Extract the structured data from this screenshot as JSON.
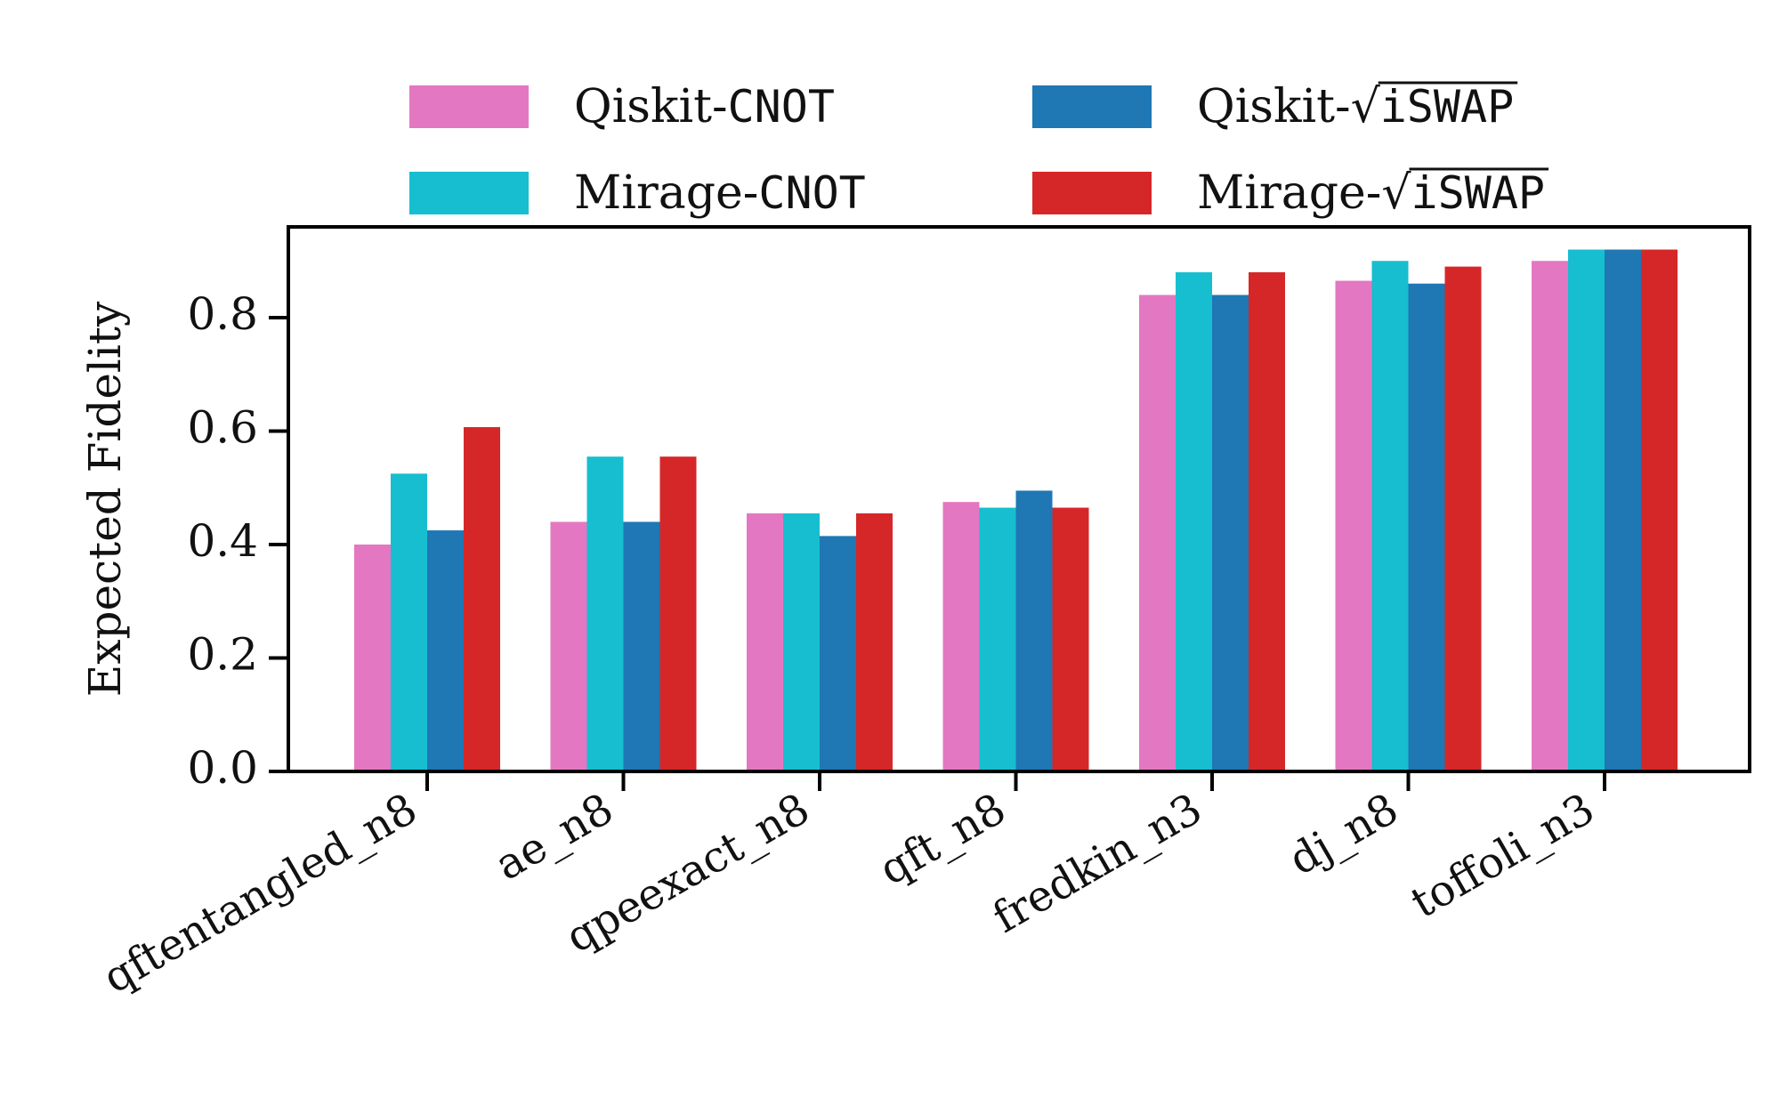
{
  "chart_data": {
    "type": "bar",
    "categories": [
      "qftentangled_n8",
      "ae_n8",
      "qpeexact_n8",
      "qft_n8",
      "fredkin_n3",
      "dj_n8",
      "toffoli_n3"
    ],
    "series": [
      {
        "name": "Qiskit-CNOT",
        "color": "#e377c2",
        "values": [
          0.4,
          0.44,
          0.455,
          0.475,
          0.84,
          0.865,
          0.9
        ]
      },
      {
        "name": "Mirage-CNOT",
        "color": "#17becf",
        "values": [
          0.525,
          0.555,
          0.455,
          0.465,
          0.88,
          0.9,
          0.92
        ]
      },
      {
        "name": "Qiskit-√iSWAP",
        "color": "#1f77b4",
        "values": [
          0.425,
          0.44,
          0.415,
          0.495,
          0.84,
          0.86,
          0.92
        ]
      },
      {
        "name": "Mirage-√iSWAP",
        "color": "#d62728",
        "values": [
          0.607,
          0.555,
          0.455,
          0.465,
          0.88,
          0.89,
          0.92
        ]
      }
    ],
    "ylabel": "Expected Fidelity",
    "ylim": [
      0,
      0.96
    ],
    "yticks": [
      "0.0",
      "0.2",
      "0.4",
      "0.6",
      "0.8"
    ],
    "legend": {
      "placement": "top-center",
      "entries": [
        {
          "prefix": "Qiskit-",
          "gate": "CNOT",
          "sqrt": false,
          "color": "#e377c2"
        },
        {
          "prefix": "Mirage-",
          "gate": "CNOT",
          "sqrt": false,
          "color": "#17becf"
        },
        {
          "prefix": "Qiskit-",
          "gate": "iSWAP",
          "sqrt": true,
          "color": "#1f77b4"
        },
        {
          "prefix": "Mirage-",
          "gate": "iSWAP",
          "sqrt": true,
          "color": "#d62728"
        }
      ]
    },
    "grid": false
  }
}
